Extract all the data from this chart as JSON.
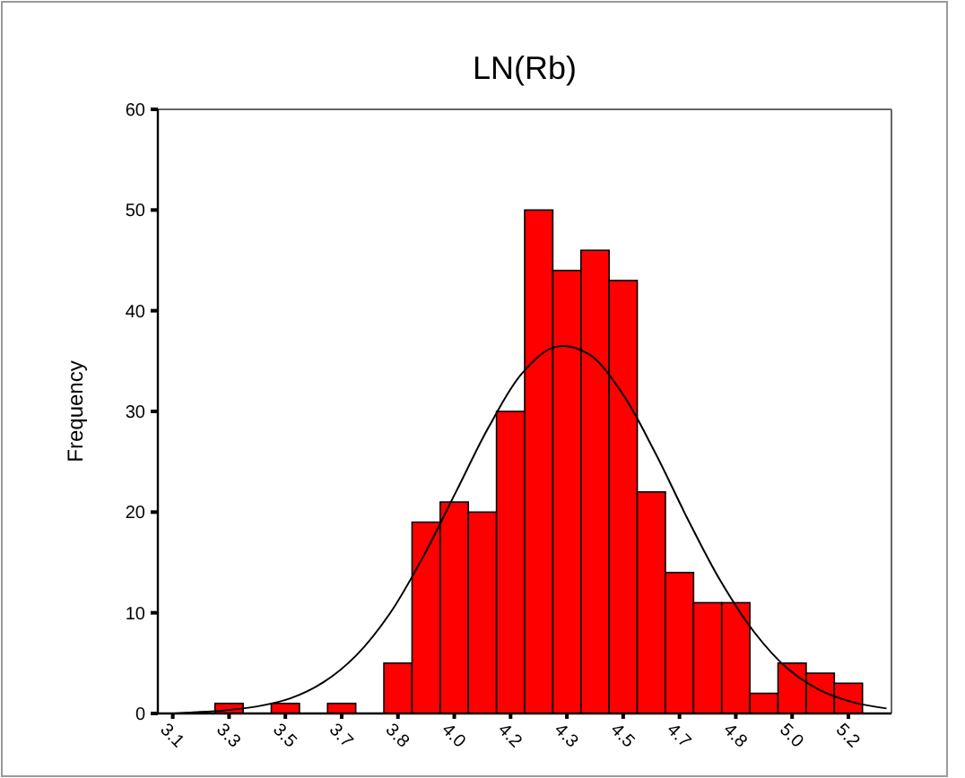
{
  "chart_data": {
    "type": "histogram",
    "title": "LN(Rb)",
    "ylabel": "Frequency",
    "bins": [
      3.1025,
      3.1875,
      3.2725,
      3.3575,
      3.4425,
      3.5275,
      3.6125,
      3.6975,
      3.7825,
      3.8675,
      3.9525,
      4.0375,
      4.1225,
      4.2075,
      4.2925,
      4.3775,
      4.4625,
      4.5475,
      4.6325,
      4.7175,
      4.8025,
      4.8875,
      4.9725,
      5.0575,
      5.1425,
      5.2275
    ],
    "xlim": [
      3.1,
      5.315
    ],
    "xticks": [
      {
        "value": 3.145,
        "label": "3.1"
      },
      {
        "value": 3.315,
        "label": "3.3"
      },
      {
        "value": 3.485,
        "label": "3.5"
      },
      {
        "value": 3.655,
        "label": "3.7"
      },
      {
        "value": 3.825,
        "label": "3.8"
      },
      {
        "value": 3.995,
        "label": "4.0"
      },
      {
        "value": 4.165,
        "label": "4.2"
      },
      {
        "value": 4.335,
        "label": "4.3"
      },
      {
        "value": 4.505,
        "label": "4.5"
      },
      {
        "value": 4.675,
        "label": "4.7"
      },
      {
        "value": 4.845,
        "label": "4.8"
      },
      {
        "value": 5.015,
        "label": "5.0"
      },
      {
        "value": 5.185,
        "label": "5.2"
      }
    ],
    "ylim": [
      0,
      60
    ],
    "yticks": [
      0,
      10,
      20,
      30,
      40,
      50,
      60
    ],
    "grid": false,
    "series": [
      {
        "color": "#ff0000",
        "values": [
          0,
          0,
          1,
          0,
          1,
          0,
          1,
          0,
          5,
          19,
          21,
          20,
          30,
          50,
          44,
          46,
          43,
          22,
          14,
          11,
          11,
          2,
          5,
          4,
          3
        ]
      },
      {
        "type": "line",
        "color": "#000000",
        "marker": "none",
        "x": [
          3.15,
          3.2,
          3.3,
          3.4,
          3.5,
          3.6,
          3.7,
          3.8,
          3.9,
          4.0,
          4.1,
          4.2,
          4.3,
          4.4,
          4.5,
          4.6,
          4.7,
          4.8,
          4.9,
          5.0,
          5.1,
          5.2,
          5.3
        ],
        "values": [
          0.0,
          0.1,
          0.3,
          0.7,
          1.5,
          3.1,
          5.8,
          9.9,
          15.5,
          22.0,
          28.5,
          33.8,
          36.4,
          35.7,
          31.9,
          26.0,
          19.3,
          13.1,
          8.1,
          4.5,
          2.3,
          1.1,
          0.5
        ]
      }
    ]
  }
}
